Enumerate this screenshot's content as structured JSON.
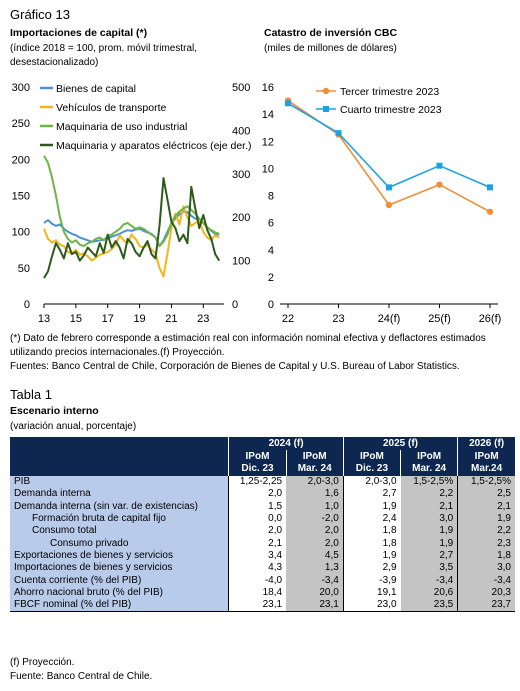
{
  "figure": {
    "title": "Gráfico 13",
    "left_title": "Importaciones de capital (*)",
    "left_subtitle_1": "(índice 2018 = 100, prom. móvil trimestral,",
    "left_subtitle_2": "desestacionalizado)",
    "right_title": "Catastro de inversión CBC",
    "right_subtitle": "(miles de millones de dólares)",
    "note_1": "(*) Dato de febrero corresponde a estimación real con información nominal efectiva y deflactores estimados",
    "note_2": "utilizando precios internacionales.(f) Proyección.",
    "sources": "Fuentes: Banco Central de Chile, Corporación de Bienes de Capital y U.S. Bureau of Labor Statistics."
  },
  "chart_data": [
    {
      "type": "line",
      "title": "Importaciones de capital (*)",
      "x_ticks": [
        "13",
        "15",
        "17",
        "19",
        "21",
        "23"
      ],
      "x_range": [
        2013,
        2024.3
      ],
      "y_left_ticks": [
        "0",
        "50",
        "100",
        "150",
        "200",
        "250",
        "300"
      ],
      "ylim_left": [
        0,
        300
      ],
      "y_right_ticks": [
        "0",
        "100",
        "200",
        "300",
        "400",
        "500"
      ],
      "ylim_right": [
        0,
        500
      ],
      "series": [
        {
          "name": "Bienes de capital",
          "color": "#4f8fd6",
          "axis": "left",
          "x": [
            2013.0,
            2013.25,
            2013.5,
            2013.75,
            2014.0,
            2014.25,
            2014.5,
            2014.75,
            2015.0,
            2015.25,
            2015.5,
            2015.75,
            2016.0,
            2016.25,
            2016.5,
            2016.75,
            2017.0,
            2017.25,
            2017.5,
            2017.75,
            2018.0,
            2018.25,
            2018.5,
            2018.75,
            2019.0,
            2019.25,
            2019.5,
            2019.75,
            2020.0,
            2020.25,
            2020.5,
            2020.75,
            2021.0,
            2021.25,
            2021.5,
            2021.75,
            2022.0,
            2022.25,
            2022.5,
            2022.75,
            2023.0,
            2023.25,
            2023.5,
            2023.75,
            2024.0
          ],
          "y": [
            112,
            116,
            111,
            108,
            110,
            104,
            100,
            97,
            95,
            92,
            90,
            88,
            86,
            87,
            88,
            89,
            91,
            93,
            95,
            97,
            100,
            102,
            101,
            103,
            104,
            101,
            99,
            97,
            92,
            80,
            88,
            100,
            112,
            118,
            124,
            128,
            127,
            122,
            118,
            116,
            112,
            106,
            101,
            97,
            96
          ]
        },
        {
          "name": "Vehículos de transporte",
          "color": "#f2b51a",
          "axis": "left",
          "x": [
            2013.0,
            2013.25,
            2013.5,
            2013.75,
            2014.0,
            2014.25,
            2014.5,
            2014.75,
            2015.0,
            2015.25,
            2015.5,
            2015.75,
            2016.0,
            2016.25,
            2016.5,
            2016.75,
            2017.0,
            2017.25,
            2017.5,
            2017.75,
            2018.0,
            2018.25,
            2018.5,
            2018.75,
            2019.0,
            2019.25,
            2019.5,
            2019.75,
            2020.0,
            2020.25,
            2020.5,
            2020.75,
            2021.0,
            2021.25,
            2021.5,
            2021.75,
            2022.0,
            2022.25,
            2022.5,
            2022.75,
            2023.0,
            2023.25,
            2023.5,
            2023.75,
            2024.0
          ],
          "y": [
            104,
            90,
            85,
            88,
            82,
            80,
            72,
            70,
            75,
            68,
            70,
            66,
            60,
            64,
            68,
            70,
            72,
            76,
            82,
            95,
            88,
            84,
            96,
            90,
            80,
            78,
            82,
            75,
            70,
            50,
            38,
            70,
            105,
            125,
            110,
            135,
            120,
            108,
            112,
            115,
            100,
            92,
            88,
            95,
            92
          ]
        },
        {
          "name": "Maquinaria de uso industrial",
          "color": "#6fb544",
          "axis": "left",
          "x": [
            2013.0,
            2013.25,
            2013.5,
            2013.75,
            2014.0,
            2014.25,
            2014.5,
            2014.75,
            2015.0,
            2015.25,
            2015.5,
            2015.75,
            2016.0,
            2016.25,
            2016.5,
            2016.75,
            2017.0,
            2017.25,
            2017.5,
            2017.75,
            2018.0,
            2018.25,
            2018.5,
            2018.75,
            2019.0,
            2019.25,
            2019.5,
            2019.75,
            2020.0,
            2020.25,
            2020.5,
            2020.75,
            2021.0,
            2021.25,
            2021.5,
            2021.75,
            2022.0,
            2022.25,
            2022.5,
            2022.75,
            2023.0,
            2023.25,
            2023.5,
            2023.75,
            2024.0
          ],
          "y": [
            205,
            195,
            175,
            150,
            120,
            100,
            90,
            85,
            88,
            82,
            80,
            84,
            86,
            90,
            92,
            88,
            94,
            96,
            100,
            104,
            110,
            112,
            108,
            104,
            106,
            104,
            100,
            96,
            92,
            80,
            86,
            96,
            112,
            122,
            128,
            132,
            135,
            130,
            125,
            118,
            112,
            106,
            102,
            99,
            97
          ]
        },
        {
          "name": "Maquinaria y aparatos eléctricos (eje der.)",
          "color": "#2c5a1b",
          "axis": "right",
          "x": [
            2013.0,
            2013.25,
            2013.5,
            2013.75,
            2014.0,
            2014.25,
            2014.5,
            2014.75,
            2015.0,
            2015.25,
            2015.5,
            2015.75,
            2016.0,
            2016.25,
            2016.5,
            2016.75,
            2017.0,
            2017.25,
            2017.5,
            2017.75,
            2018.0,
            2018.25,
            2018.5,
            2018.75,
            2019.0,
            2019.25,
            2019.5,
            2019.75,
            2020.0,
            2020.25,
            2020.5,
            2020.75,
            2021.0,
            2021.25,
            2021.5,
            2021.75,
            2022.0,
            2022.25,
            2022.5,
            2022.75,
            2023.0,
            2023.25,
            2023.5,
            2023.75,
            2024.0
          ],
          "y": [
            60,
            75,
            110,
            140,
            125,
            105,
            140,
            115,
            120,
            100,
            112,
            130,
            120,
            110,
            140,
            118,
            160,
            130,
            145,
            130,
            105,
            150,
            140,
            120,
            110,
            130,
            145,
            115,
            105,
            180,
            290,
            240,
            190,
            175,
            145,
            160,
            140,
            270,
            220,
            175,
            205,
            170,
            150,
            115,
            100
          ]
        }
      ]
    },
    {
      "type": "line",
      "title": "Catastro de inversión CBC",
      "categories": [
        "22",
        "23",
        "24(f)",
        "25(f)",
        "26(f)"
      ],
      "y_ticks": [
        "0",
        "2",
        "4",
        "6",
        "8",
        "10",
        "12",
        "14",
        "16"
      ],
      "ylim": [
        0,
        16
      ],
      "series": [
        {
          "name": "Tercer trimestre 2023",
          "color": "#ef8f3a",
          "marker": "circle",
          "values": [
            15.0,
            12.5,
            7.3,
            8.8,
            6.8
          ]
        },
        {
          "name": "Cuarto trimestre 2023",
          "color": "#1aa3e0",
          "marker": "square",
          "values": [
            14.8,
            12.6,
            8.6,
            10.2,
            8.6
          ]
        }
      ]
    }
  ],
  "table": {
    "title": "Tabla 1",
    "subtitle": "Escenario interno",
    "unit": "(variación anual, porcentaje)",
    "years": [
      "2024 (f)",
      "2025 (f)",
      "2026 (f)"
    ],
    "columns": [
      {
        "line1": "IPoM",
        "line2": "Dic. 23"
      },
      {
        "line1": "IPoM",
        "line2": "Mar. 24"
      },
      {
        "line1": "IPoM",
        "line2": "Dic. 23"
      },
      {
        "line1": "IPoM",
        "line2": "Mar. 24"
      },
      {
        "line1": "IPoM",
        "line2": "Mar.24"
      }
    ],
    "rows": [
      {
        "label": "PIB",
        "v": [
          "1,25-2,25",
          "2,0-3,0",
          "2,0-3,0",
          "1,5-2,5%",
          "1,5-2,5%"
        ]
      },
      {
        "label": "Demanda interna",
        "v": [
          "2,0",
          "1,6",
          "2,7",
          "2,2",
          "2,5"
        ]
      },
      {
        "label": "Demanda interna (sin var. de existencias)",
        "v": [
          "1,5",
          "1,0",
          "1,9",
          "2,1",
          "2,1"
        ]
      },
      {
        "label": "Formación bruta de capital fijo",
        "indent": 1,
        "v": [
          "0,0",
          "-2,0",
          "2,4",
          "3,0",
          "1,9"
        ]
      },
      {
        "label": "Consumo total",
        "indent": 1,
        "v": [
          "2,0",
          "2,0",
          "1,8",
          "1,9",
          "2,2"
        ]
      },
      {
        "label": "Consumo privado",
        "indent": 2,
        "v": [
          "2,1",
          "2,0",
          "1,8",
          "1,9",
          "2,3"
        ]
      },
      {
        "label": "Exportaciones de bienes y servicios",
        "v": [
          "3,4",
          "4,5",
          "1,9",
          "2,7",
          "1,8"
        ]
      },
      {
        "label": "Importaciones de bienes y servicios",
        "v": [
          "4,3",
          "1,3",
          "2,9",
          "3,5",
          "3,0"
        ]
      },
      {
        "label": "Cuenta corriente (% del PIB)",
        "v": [
          "-4,0",
          "-3,4",
          "-3,9",
          "-3,4",
          "-3,4"
        ]
      },
      {
        "label": "Ahorro nacional bruto (% del PIB)",
        "v": [
          "18,4",
          "20,0",
          "19,1",
          "20,6",
          "20,3"
        ]
      },
      {
        "label": "FBCF nominal (% del PIB)",
        "v": [
          "23,1",
          "23,1",
          "23,0",
          "23,5",
          "23,7"
        ]
      }
    ],
    "footnote": "(f) Proyección.",
    "source": "Fuente: Banco Central de Chile."
  }
}
